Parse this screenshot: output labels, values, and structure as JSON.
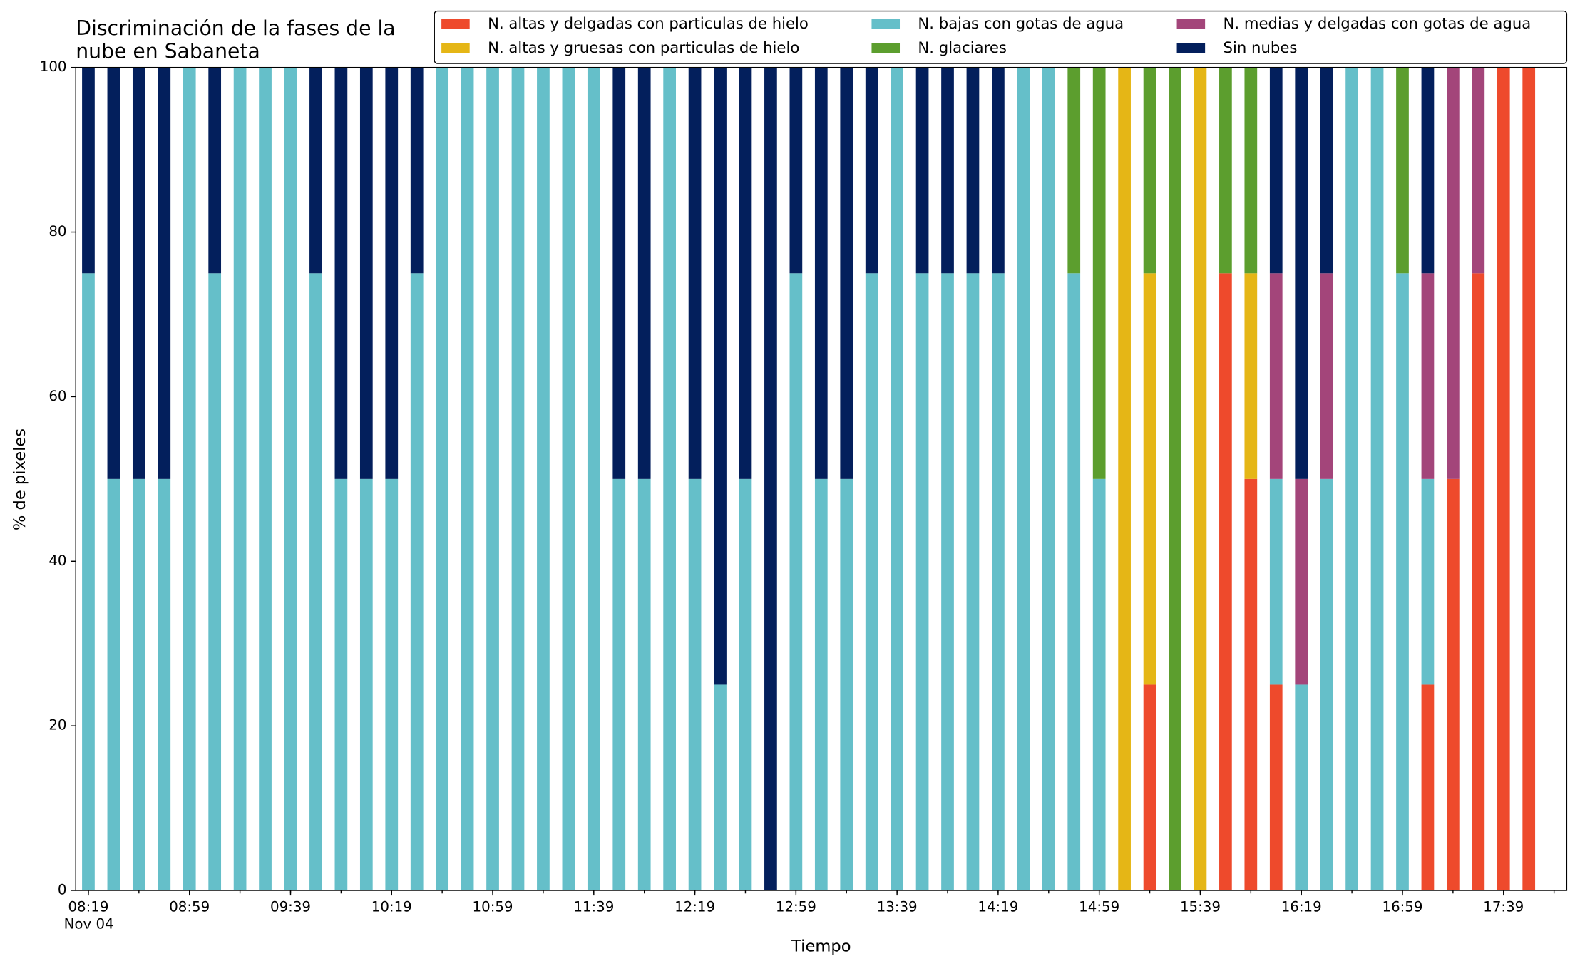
{
  "chart_data": {
    "type": "stacked_bar",
    "title": [
      "Discriminación de la fases de la",
      "nube en Sabaneta"
    ],
    "x_label": "Tiempo",
    "y_label": "% de pixeles",
    "x_date_label": "Nov 04",
    "categories": [
      "08:19",
      null,
      null,
      null,
      "08:59",
      null,
      null,
      null,
      "09:39",
      null,
      null,
      null,
      "10:19",
      null,
      null,
      null,
      "10:59",
      null,
      null,
      null,
      "11:39",
      null,
      null,
      null,
      "12:19",
      null,
      null,
      null,
      "12:59",
      null,
      null,
      null,
      "13:39",
      null,
      null,
      null,
      "14:19",
      null,
      null,
      null,
      "14:59",
      null,
      null,
      null,
      "15:39",
      null,
      null,
      null,
      "16:19",
      null,
      null,
      null,
      "16:59",
      null,
      null,
      null,
      "17:39",
      null
    ],
    "ylim": [
      0,
      100
    ],
    "yticks": [
      0,
      20,
      40,
      60,
      80,
      100
    ],
    "series": [
      {
        "name": "N. altas y delgadas con particulas de hielo",
        "color": "#ee4a2c",
        "values": [
          0,
          0,
          0,
          0,
          0,
          0,
          0,
          0,
          0,
          0,
          0,
          0,
          0,
          0,
          0,
          0,
          0,
          0,
          0,
          0,
          0,
          0,
          0,
          0,
          0,
          0,
          0,
          0,
          0,
          0,
          0,
          0,
          0,
          0,
          0,
          0,
          0,
          0,
          0,
          0,
          0,
          0,
          25,
          0,
          0,
          75,
          50,
          25,
          0,
          0,
          0,
          0,
          0,
          25,
          50,
          75,
          100,
          100
        ]
      },
      {
        "name": "N. altas y gruesas con particulas de hielo",
        "color": "#e5b616",
        "values": [
          0,
          0,
          0,
          0,
          0,
          0,
          0,
          0,
          0,
          0,
          0,
          0,
          0,
          0,
          0,
          0,
          0,
          0,
          0,
          0,
          0,
          0,
          0,
          0,
          0,
          0,
          0,
          0,
          0,
          0,
          0,
          0,
          0,
          0,
          0,
          0,
          0,
          0,
          0,
          0,
          0,
          100,
          50,
          0,
          100,
          0,
          25,
          0,
          0,
          0,
          0,
          0,
          0,
          0,
          0,
          0,
          0,
          0
        ]
      },
      {
        "name": "N. bajas con gotas de agua",
        "color": "#65bfc9",
        "values": [
          75,
          50,
          50,
          50,
          100,
          75,
          100,
          100,
          100,
          75,
          50,
          50,
          50,
          75,
          100,
          100,
          100,
          100,
          100,
          100,
          100,
          50,
          50,
          100,
          50,
          25,
          50,
          0,
          75,
          50,
          50,
          75,
          100,
          75,
          75,
          75,
          75,
          100,
          100,
          75,
          50,
          0,
          0,
          0,
          0,
          0,
          0,
          25,
          25,
          50,
          100,
          100,
          75,
          25,
          0,
          0,
          0,
          0
        ]
      },
      {
        "name": "N. glaciares",
        "color": "#5c9e2e",
        "values": [
          0,
          0,
          0,
          0,
          0,
          0,
          0,
          0,
          0,
          0,
          0,
          0,
          0,
          0,
          0,
          0,
          0,
          0,
          0,
          0,
          0,
          0,
          0,
          0,
          0,
          0,
          0,
          0,
          0,
          0,
          0,
          0,
          0,
          0,
          0,
          0,
          0,
          0,
          0,
          25,
          50,
          0,
          25,
          100,
          0,
          25,
          25,
          0,
          0,
          0,
          0,
          0,
          25,
          0,
          0,
          0,
          0,
          0
        ]
      },
      {
        "name": "N. medias y delgadas con gotas de agua",
        "color": "#a3457a",
        "values": [
          0,
          0,
          0,
          0,
          0,
          0,
          0,
          0,
          0,
          0,
          0,
          0,
          0,
          0,
          0,
          0,
          0,
          0,
          0,
          0,
          0,
          0,
          0,
          0,
          0,
          0,
          0,
          0,
          0,
          0,
          0,
          0,
          0,
          0,
          0,
          0,
          0,
          0,
          0,
          0,
          0,
          0,
          0,
          0,
          0,
          0,
          0,
          25,
          25,
          25,
          0,
          0,
          0,
          25,
          50,
          25,
          0,
          0
        ]
      },
      {
        "name": "Sin nubes",
        "color": "#031f5c",
        "values": [
          25,
          50,
          50,
          50,
          0,
          25,
          0,
          0,
          0,
          25,
          50,
          50,
          50,
          25,
          0,
          0,
          0,
          0,
          0,
          0,
          0,
          50,
          50,
          0,
          50,
          75,
          50,
          100,
          25,
          50,
          50,
          25,
          0,
          25,
          25,
          25,
          25,
          0,
          0,
          0,
          0,
          0,
          0,
          0,
          0,
          0,
          0,
          25,
          50,
          25,
          0,
          0,
          0,
          25,
          0,
          0,
          0,
          0
        ]
      }
    ]
  }
}
